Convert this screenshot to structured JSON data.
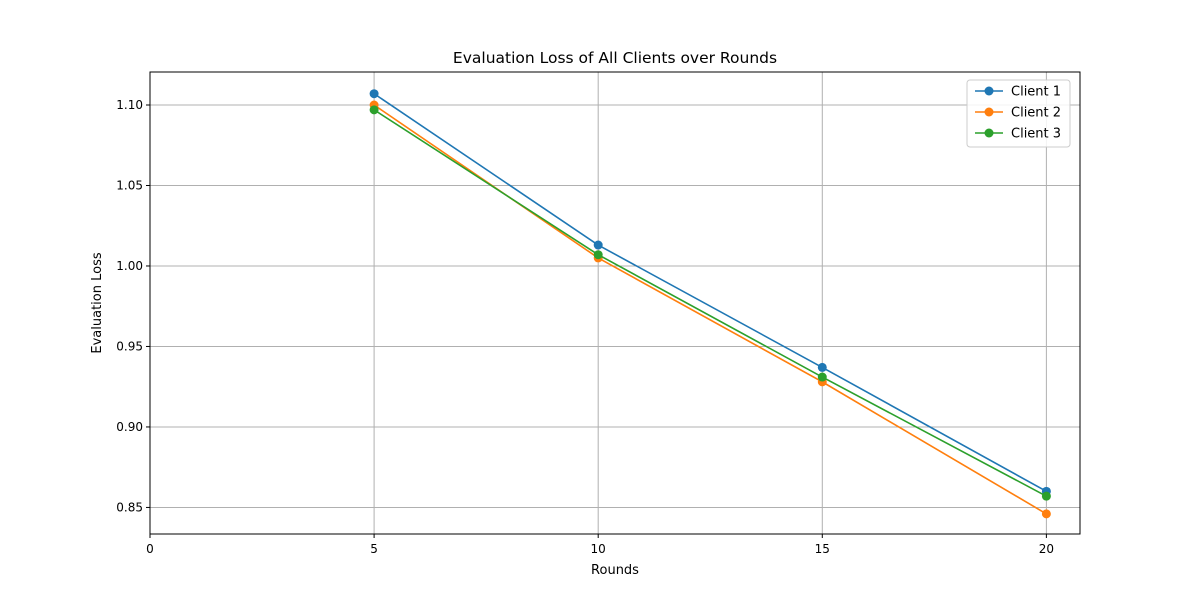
{
  "chart_data": {
    "type": "line",
    "title": "Evaluation Loss of All Clients over Rounds",
    "xlabel": "Rounds",
    "ylabel": "Evaluation Loss",
    "x": [
      5,
      10,
      15,
      20
    ],
    "xlim": [
      0,
      20.75
    ],
    "ylim": [
      0.8335,
      1.1205
    ],
    "xticks": [
      0,
      5,
      10,
      15,
      20
    ],
    "xtick_labels": [
      "0",
      "5",
      "10",
      "15",
      "20"
    ],
    "yticks": [
      0.85,
      0.9,
      0.95,
      1.0,
      1.05,
      1.1
    ],
    "ytick_labels": [
      "0.85",
      "0.90",
      "0.95",
      "1.00",
      "1.05",
      "1.10"
    ],
    "grid": true,
    "legend_position": "top-right",
    "series": [
      {
        "name": "Client 1",
        "color": "#1f77b4",
        "marker": "circle",
        "values": [
          1.107,
          1.013,
          0.937,
          0.86
        ]
      },
      {
        "name": "Client 2",
        "color": "#ff7f0e",
        "marker": "circle",
        "values": [
          1.1,
          1.005,
          0.928,
          0.846
        ]
      },
      {
        "name": "Client 3",
        "color": "#2ca02c",
        "marker": "circle",
        "values": [
          1.097,
          1.007,
          0.931,
          0.857
        ]
      }
    ]
  }
}
